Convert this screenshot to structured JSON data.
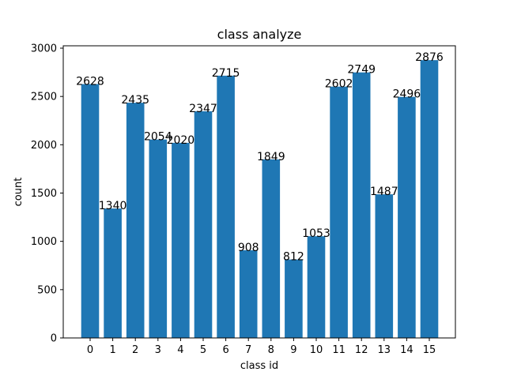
{
  "chart_data": {
    "type": "bar",
    "title": "class analyze",
    "xlabel": "class id",
    "ylabel": "count",
    "categories": [
      "0",
      "1",
      "2",
      "3",
      "4",
      "5",
      "6",
      "7",
      "8",
      "9",
      "10",
      "11",
      "12",
      "13",
      "14",
      "15"
    ],
    "values": [
      2628,
      1340,
      2435,
      2054,
      2020,
      2347,
      2715,
      908,
      1849,
      812,
      1053,
      2602,
      2749,
      1487,
      2496,
      2876
    ],
    "ylim": [
      0,
      3000
    ],
    "yticks": [
      0,
      500,
      1000,
      1500,
      2000,
      2500,
      3000
    ],
    "bar_color": "#1f77b4",
    "grid": false,
    "data_labels": true
  }
}
